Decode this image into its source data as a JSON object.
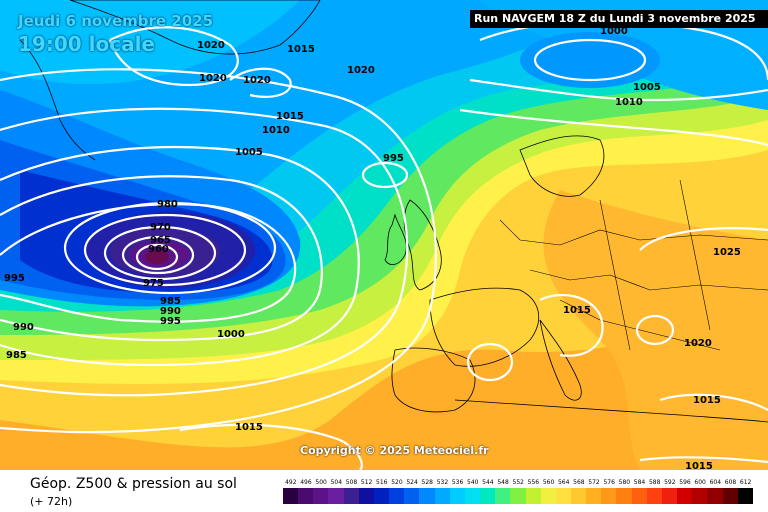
{
  "header": {
    "date": "Jeudi 6 novembre 2025",
    "time": "19:00 locale",
    "run": "Run NAVGEM 18 Z du Lundi 3 novembre 2025"
  },
  "copyright": "Copyright © 2025 Meteociel.fr",
  "footer": {
    "title": "Géop. Z500 & pression au sol",
    "subtitle": "(+ 72h)"
  },
  "scale": {
    "values": [
      "492",
      "496",
      "500",
      "504",
      "508",
      "512",
      "516",
      "520",
      "524",
      "528",
      "532",
      "536",
      "540",
      "544",
      "548",
      "552",
      "556",
      "560",
      "564",
      "568",
      "572",
      "576",
      "580",
      "584",
      "588",
      "592",
      "596",
      "600",
      "604",
      "608",
      "612"
    ],
    "colors": [
      "#2a0040",
      "#4b0a6e",
      "#5a1488",
      "#6a1ea0",
      "#3a2090",
      "#1010a0",
      "#0020c0",
      "#0040e0",
      "#0060f0",
      "#0088ff",
      "#00aaff",
      "#00ccff",
      "#00e0f0",
      "#00e8c0",
      "#40f080",
      "#80f040",
      "#c0f030",
      "#f0f040",
      "#ffe040",
      "#ffc830",
      "#ffb020",
      "#ff9818",
      "#ff8010",
      "#ff6010",
      "#ff4010",
      "#f02010",
      "#d00000",
      "#b00000",
      "#900000",
      "#600000",
      "#000000"
    ]
  },
  "isobars": [
    {
      "id": "l1",
      "text": "1020"
    },
    {
      "id": "l2",
      "text": "1020"
    },
    {
      "id": "l3",
      "text": "1020"
    },
    {
      "id": "l4",
      "text": "1015"
    },
    {
      "id": "l5",
      "text": "1020"
    },
    {
      "id": "l6",
      "text": "1015"
    },
    {
      "id": "l7",
      "text": "1010"
    },
    {
      "id": "l8",
      "text": "1005"
    },
    {
      "id": "l9",
      "text": "995"
    },
    {
      "id": "l10",
      "text": "980"
    },
    {
      "id": "l11",
      "text": "970"
    },
    {
      "id": "l12",
      "text": "965"
    },
    {
      "id": "l13",
      "text": "960"
    },
    {
      "id": "l14",
      "text": "975"
    },
    {
      "id": "l15",
      "text": "985"
    },
    {
      "id": "l16",
      "text": "990"
    },
    {
      "id": "l17",
      "text": "995"
    },
    {
      "id": "l18",
      "text": "1000"
    },
    {
      "id": "l19",
      "text": "995"
    },
    {
      "id": "l20",
      "text": "990"
    },
    {
      "id": "l21",
      "text": "985"
    },
    {
      "id": "l22",
      "text": "1000"
    },
    {
      "id": "l23",
      "text": "1005"
    },
    {
      "id": "l24",
      "text": "1010"
    },
    {
      "id": "l25",
      "text": "1025"
    },
    {
      "id": "l26",
      "text": "1015"
    },
    {
      "id": "l27",
      "text": "1020"
    },
    {
      "id": "l28",
      "text": "1015"
    },
    {
      "id": "l29",
      "text": "1015"
    },
    {
      "id": "l30",
      "text": "1015"
    },
    {
      "id": "l31",
      "text": "1015"
    }
  ]
}
